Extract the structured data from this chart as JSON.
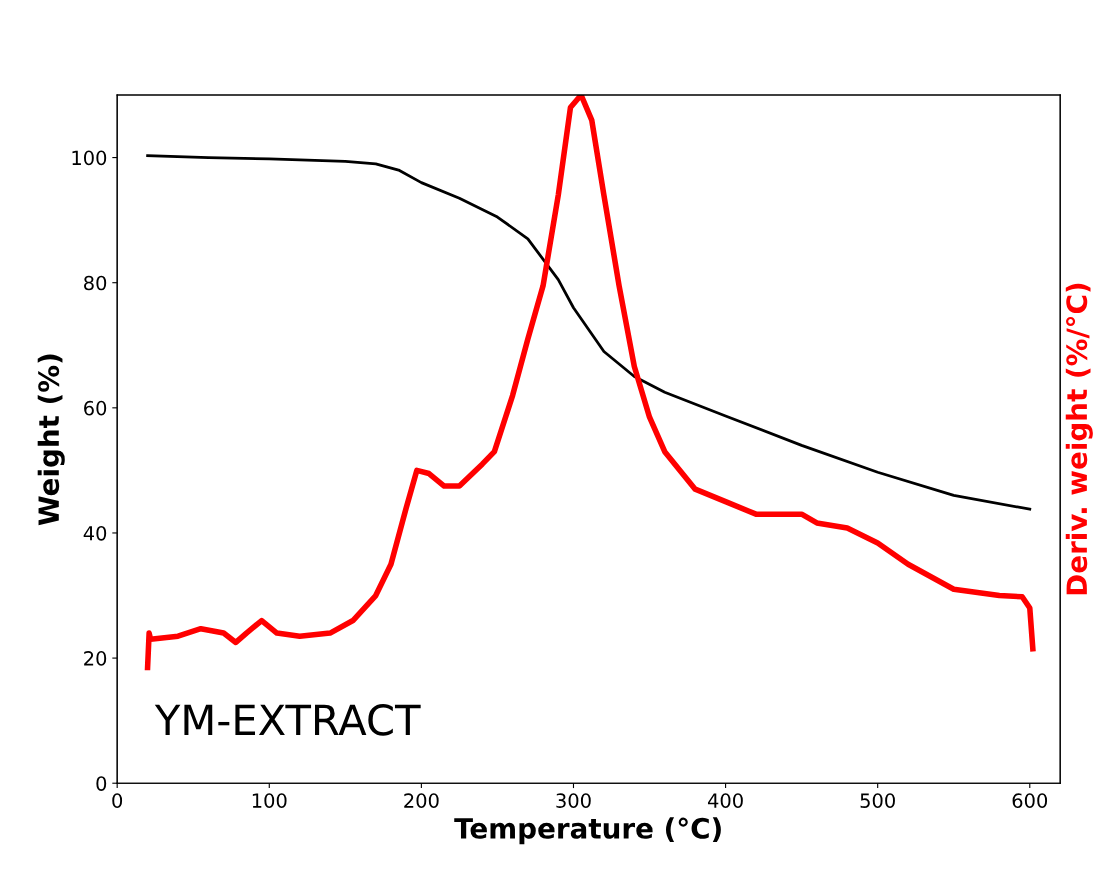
{
  "chart_data": {
    "type": "line",
    "xlabel": "Temperature (°C)",
    "ylabel": "Weight (%)",
    "y2label": "Deriv. weight (%/°C)",
    "xlim": [
      0,
      620
    ],
    "xticks": [
      0,
      100,
      200,
      300,
      400,
      500,
      600
    ],
    "ylim": [
      0,
      110
    ],
    "yticks": [
      0,
      20,
      40,
      60,
      80,
      100
    ],
    "tick_labels": "xy",
    "grid": false,
    "annotations": [
      "YM-EXTRACT"
    ],
    "series": [
      {
        "color": "#000000",
        "x": [
          20,
          60,
          100,
          150,
          170,
          185,
          200,
          225,
          250,
          270,
          290,
          300,
          320,
          340,
          360,
          400,
          450,
          500,
          550,
          600
        ],
        "values": [
          100.3,
          100,
          99.8,
          99.4,
          99,
          98,
          96,
          93.5,
          90.5,
          87,
          80.5,
          76,
          69,
          65,
          62.5,
          58.7,
          54,
          49.7,
          46,
          43.8
        ]
      },
      {
        "color": "#ff0000",
        "x": [
          20,
          21,
          22,
          40,
          55,
          70,
          78,
          85,
          95,
          105,
          120,
          140,
          155,
          170,
          180,
          190,
          197,
          205,
          215,
          225,
          240,
          248,
          260,
          270,
          280,
          290,
          298,
          305,
          312,
          320,
          330,
          340,
          350,
          360,
          380,
          400,
          420,
          450,
          460,
          480,
          500,
          520,
          550,
          580,
          595,
          600,
          602
        ],
        "values": [
          18.5,
          24,
          23,
          23.5,
          24.7,
          24,
          22.5,
          24,
          26,
          24,
          23.5,
          24,
          26,
          30,
          35,
          44,
          50,
          49.5,
          47.5,
          47.5,
          51,
          53,
          62,
          71,
          79.5,
          94,
          108,
          110,
          106,
          94,
          79.5,
          66.6,
          58.5,
          53,
          47,
          45,
          43,
          43,
          41.6,
          40.8,
          38.4,
          35,
          31,
          30,
          29.8,
          28,
          21.5
        ]
      }
    ]
  }
}
